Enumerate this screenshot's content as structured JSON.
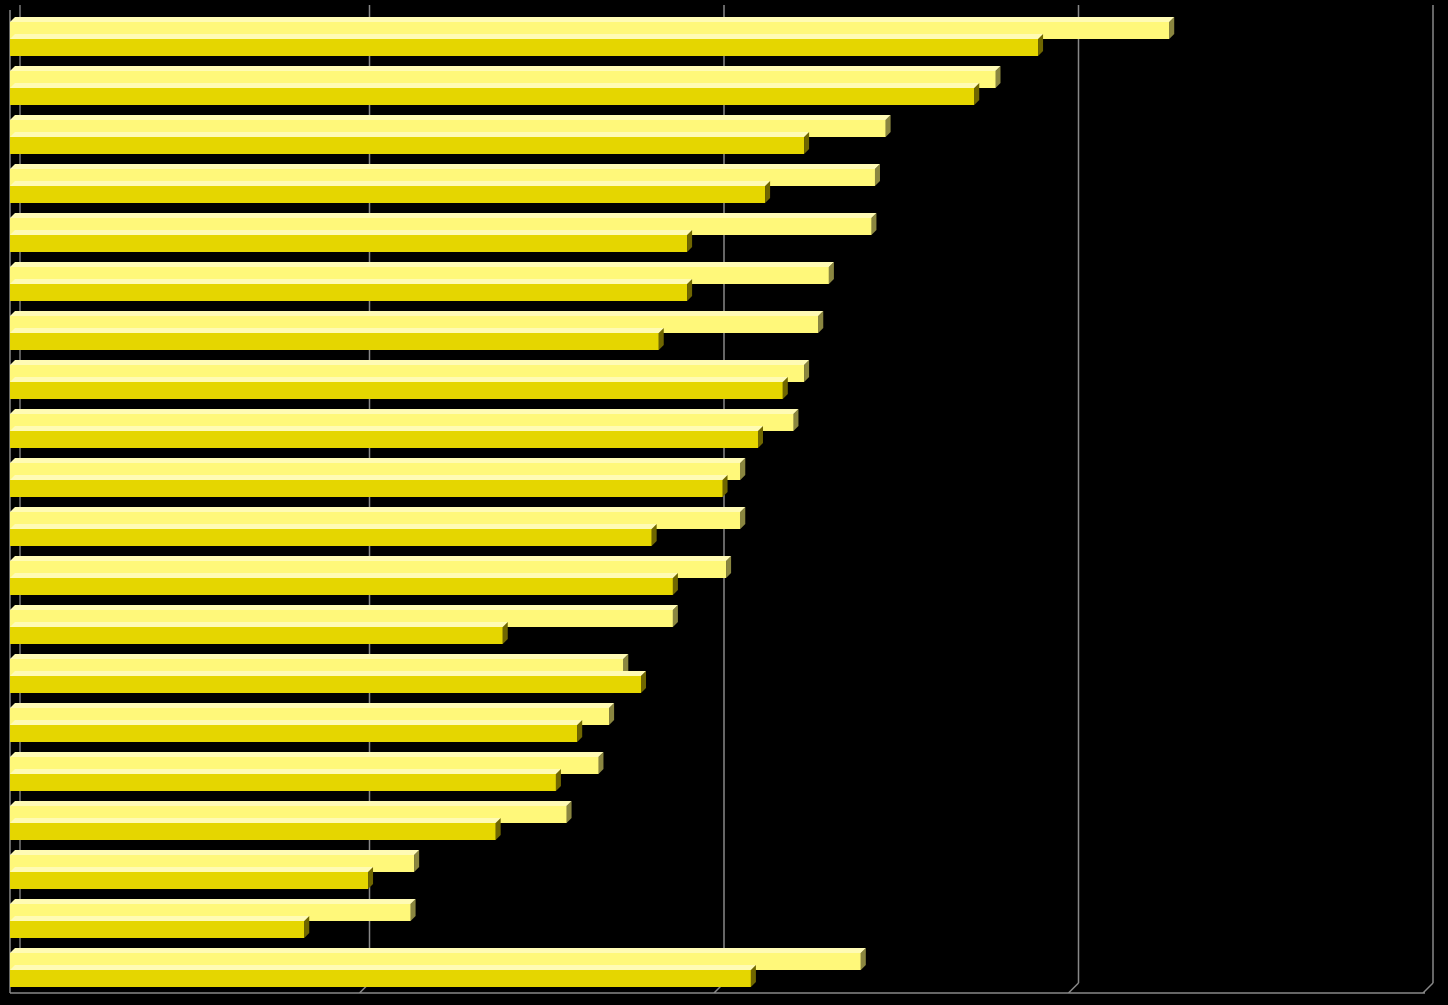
{
  "chart_data": {
    "type": "bar",
    "orientation": "horizontal",
    "style": "3d",
    "grid": true,
    "xlim": [
      0,
      4
    ],
    "series": [
      {
        "color": "#FFF87A",
        "values": [
          3.27,
          2.78,
          2.47,
          2.44,
          2.43,
          2.31,
          2.28,
          2.24,
          2.21,
          2.06,
          2.06,
          2.02,
          1.87,
          1.73,
          1.69,
          1.66,
          1.57,
          1.14,
          1.13,
          2.4
        ]
      },
      {
        "color": "#E5D600",
        "values": [
          2.9,
          2.72,
          2.24,
          2.13,
          1.91,
          1.91,
          1.83,
          2.18,
          2.11,
          2.01,
          1.81,
          1.87,
          1.39,
          1.78,
          1.6,
          1.54,
          1.37,
          1.01,
          0.83,
          2.09
        ]
      }
    ]
  }
}
